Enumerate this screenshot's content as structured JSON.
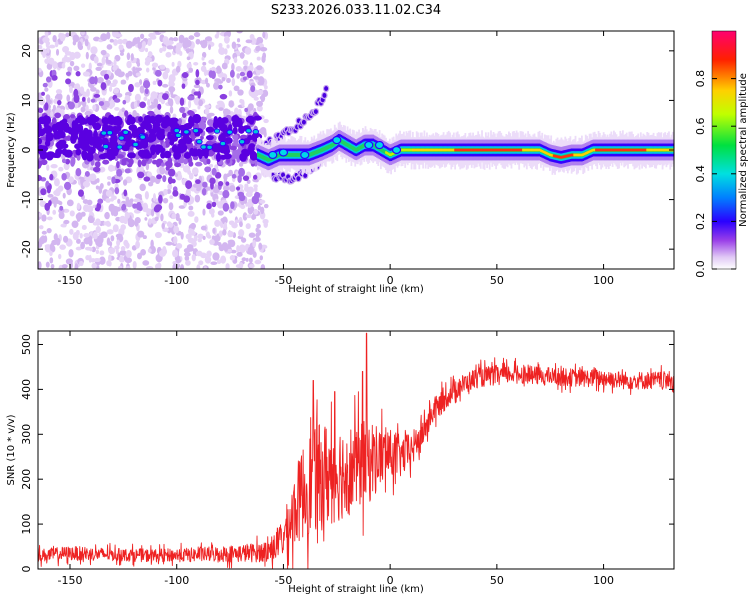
{
  "title": "S233.2026.033.11.02.C34",
  "chart_data": [
    {
      "type": "heatmap",
      "xlabel": "Height of straight line (km)",
      "ylabel": "Frequency (Hz)",
      "xlim": [
        -165,
        133
      ],
      "ylim": [
        -24,
        24
      ],
      "xticks": [
        -150,
        -100,
        -50,
        0,
        50,
        100
      ],
      "yticks": [
        -20,
        -10,
        0,
        10,
        20
      ],
      "trace": {
        "x": [
          -62,
          -57,
          -52,
          -45,
          -38,
          -32,
          -27,
          -24,
          -20,
          -16,
          -12,
          -8,
          -4,
          0,
          5,
          10,
          20,
          30,
          40,
          50,
          60,
          70,
          75,
          80,
          85,
          90,
          95,
          100,
          110,
          120,
          133
        ],
        "y": [
          -1,
          -2,
          -1,
          -1,
          -1,
          0,
          1,
          2,
          1,
          0,
          1,
          1,
          0,
          -1,
          0,
          0,
          0,
          0,
          0,
          0,
          0,
          0,
          -1,
          -1.5,
          -1,
          -1,
          0,
          0,
          0,
          0,
          0
        ]
      },
      "noise_region_km": [
        -165,
        -62
      ],
      "branches": [
        {
          "name": "upper",
          "x": [
            -62,
            -50,
            -40,
            -35,
            -30
          ],
          "y": [
            0,
            3,
            6,
            8,
            12
          ]
        },
        {
          "name": "lower",
          "x": [
            -55,
            -45,
            -35,
            -30
          ],
          "y": [
            -5,
            -6,
            -3,
            -1
          ]
        }
      ],
      "colorbar": {
        "label": "Normalized spectral amplitude",
        "min": 0,
        "max": 1,
        "ticks": [
          "0.0",
          "0.2",
          "0.4",
          "0.6",
          "0.8"
        ]
      }
    },
    {
      "type": "line",
      "xlabel": "Height of straight line (km)",
      "ylabel": "SNR (10 * v/v)",
      "xlim": [
        -165,
        133
      ],
      "ylim": [
        0,
        530
      ],
      "xticks": [
        -150,
        -100,
        -50,
        0,
        50,
        100
      ],
      "yticks": [
        0,
        100,
        200,
        300,
        400,
        500
      ],
      "series": [
        {
          "name": "SNR",
          "color": "#ee2222",
          "x": [
            -165,
            -150,
            -130,
            -110,
            -90,
            -70,
            -60,
            -55,
            -50,
            -45,
            -40,
            -35,
            -30,
            -25,
            -20,
            -15,
            -10,
            -5,
            0,
            5,
            10,
            15,
            20,
            30,
            40,
            50,
            60,
            70,
            80,
            90,
            100,
            110,
            120,
            133
          ],
          "y": [
            30,
            35,
            32,
            30,
            32,
            35,
            38,
            45,
            70,
            130,
            180,
            200,
            210,
            215,
            220,
            230,
            240,
            250,
            255,
            250,
            265,
            300,
            350,
            400,
            425,
            432,
            435,
            430,
            428,
            425,
            425,
            420,
            420,
            420
          ],
          "amp": [
            18,
            20,
            18,
            18,
            20,
            25,
            28,
            35,
            55,
            100,
            140,
            150,
            150,
            140,
            130,
            120,
            120,
            90,
            70,
            60,
            50,
            40,
            35,
            30,
            28,
            28,
            25,
            25,
            25,
            25,
            25,
            25,
            25,
            25
          ]
        }
      ],
      "spikes": [
        {
          "x": -11,
          "y": 525
        },
        {
          "x": -13,
          "y": 440
        },
        {
          "x": -36,
          "y": 420
        },
        {
          "x": -26,
          "y": 395
        }
      ]
    }
  ]
}
